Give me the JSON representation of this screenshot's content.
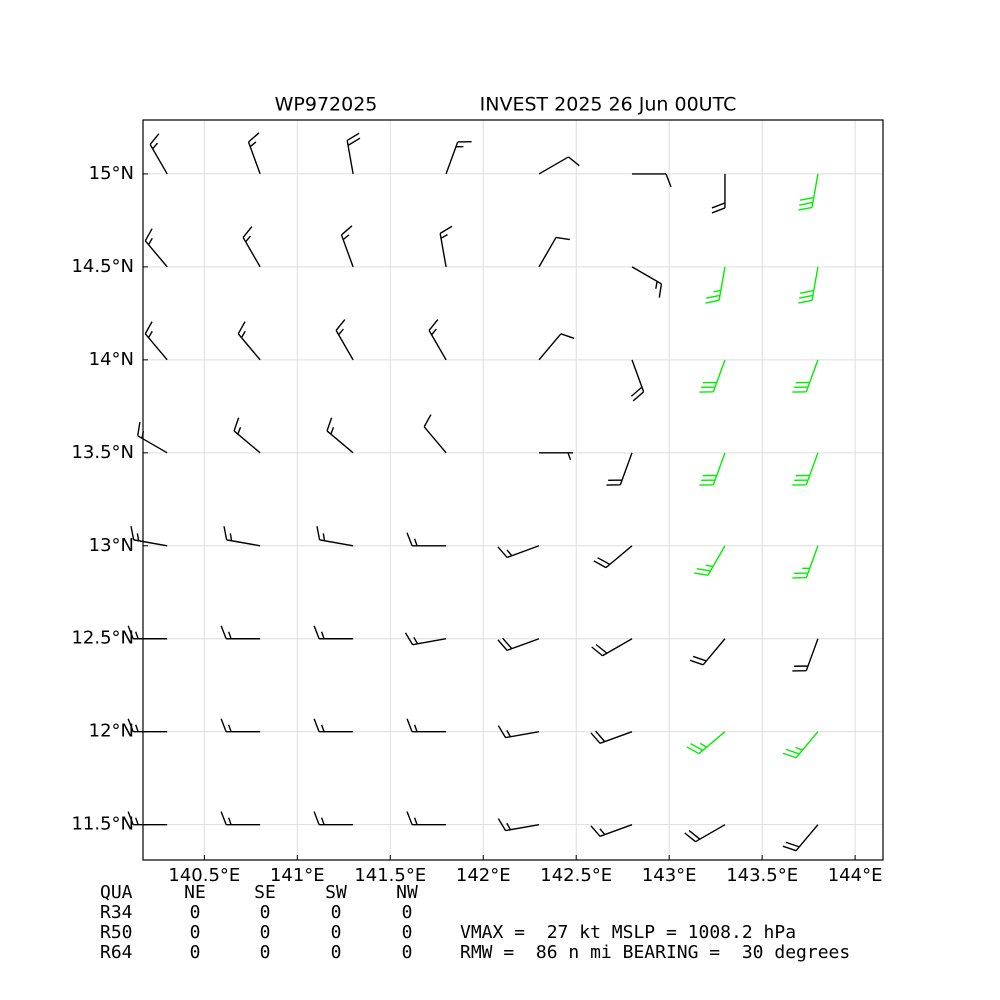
{
  "chart_data": {
    "type": "barbs",
    "title_left": "WP972025",
    "title_right": "INVEST 2025 26 Jun 00UTC",
    "xlim": [
      140.17,
      144.15
    ],
    "ylim": [
      11.31,
      15.29
    ],
    "xticks": [
      {
        "value": 140.5,
        "label": "140.5°E"
      },
      {
        "value": 141,
        "label": "141°E"
      },
      {
        "value": 141.5,
        "label": "141.5°E"
      },
      {
        "value": 142,
        "label": "142°E"
      },
      {
        "value": 142.5,
        "label": "142.5°E"
      },
      {
        "value": 143,
        "label": "143°E"
      },
      {
        "value": 143.5,
        "label": "143.5°E"
      },
      {
        "value": 144,
        "label": "144°E"
      }
    ],
    "yticks": [
      {
        "value": 11.5,
        "label": "11.5°N"
      },
      {
        "value": 12,
        "label": "12°N"
      },
      {
        "value": 12.5,
        "label": "12.5°N"
      },
      {
        "value": 13,
        "label": "13°N"
      },
      {
        "value": 13.5,
        "label": "13.5°N"
      },
      {
        "value": 14,
        "label": "14°N"
      },
      {
        "value": 14.5,
        "label": "14.5°N"
      },
      {
        "value": 15,
        "label": "15°N"
      }
    ],
    "grid": true,
    "colors": {
      "normal": "#000000",
      "strong": "#00ee00"
    },
    "strong_from": 25,
    "lon": [
      140.3,
      140.8,
      141.3,
      141.8,
      142.3,
      142.8,
      143.3,
      143.8
    ],
    "lat": [
      15.0,
      14.5,
      14.0,
      13.5,
      13.0,
      12.5,
      12.0,
      11.5
    ],
    "direction": [
      [
        330,
        340,
        350,
        20,
        60,
        90,
        180,
        190
      ],
      [
        320,
        330,
        340,
        350,
        30,
        120,
        190,
        190
      ],
      [
        320,
        320,
        330,
        330,
        40,
        160,
        200,
        200
      ],
      [
        300,
        310,
        310,
        320,
        90,
        200,
        200,
        200
      ],
      [
        280,
        280,
        280,
        270,
        250,
        230,
        210,
        200
      ],
      [
        270,
        270,
        270,
        260,
        250,
        240,
        220,
        200
      ],
      [
        270,
        270,
        270,
        270,
        260,
        250,
        230,
        220
      ],
      [
        270,
        270,
        270,
        270,
        260,
        250,
        240,
        220
      ]
    ],
    "speed": [
      [
        15,
        15,
        20,
        15,
        10,
        10,
        20,
        30
      ],
      [
        15,
        15,
        15,
        15,
        10,
        15,
        25,
        30
      ],
      [
        15,
        15,
        15,
        15,
        10,
        20,
        30,
        30
      ],
      [
        15,
        15,
        15,
        10,
        5,
        20,
        30,
        30
      ],
      [
        15,
        15,
        15,
        15,
        15,
        20,
        25,
        25
      ],
      [
        15,
        15,
        15,
        15,
        20,
        20,
        20,
        20
      ],
      [
        15,
        15,
        15,
        15,
        15,
        20,
        25,
        25
      ],
      [
        15,
        15,
        15,
        15,
        15,
        15,
        20,
        20
      ]
    ]
  },
  "table": {
    "header": [
      "QUA",
      "NE",
      "SE",
      "SW",
      "NW"
    ],
    "rows": [
      [
        "R34",
        0,
        0,
        0,
        0
      ],
      [
        "R50",
        0,
        0,
        0,
        0
      ],
      [
        "R64",
        0,
        0,
        0,
        0
      ]
    ]
  },
  "stats": {
    "vmax_label": "VMAX =",
    "vmax": 27,
    "vmax_unit": "kt",
    "mslp_label": "MSLP =",
    "mslp": 1008.2,
    "mslp_unit": "hPa",
    "rmw_label": "RMW =",
    "rmw": 86,
    "rmw_unit": "n mi",
    "bearing_label": "BEARING =",
    "bearing": 30,
    "bearing_unit": "degrees"
  }
}
